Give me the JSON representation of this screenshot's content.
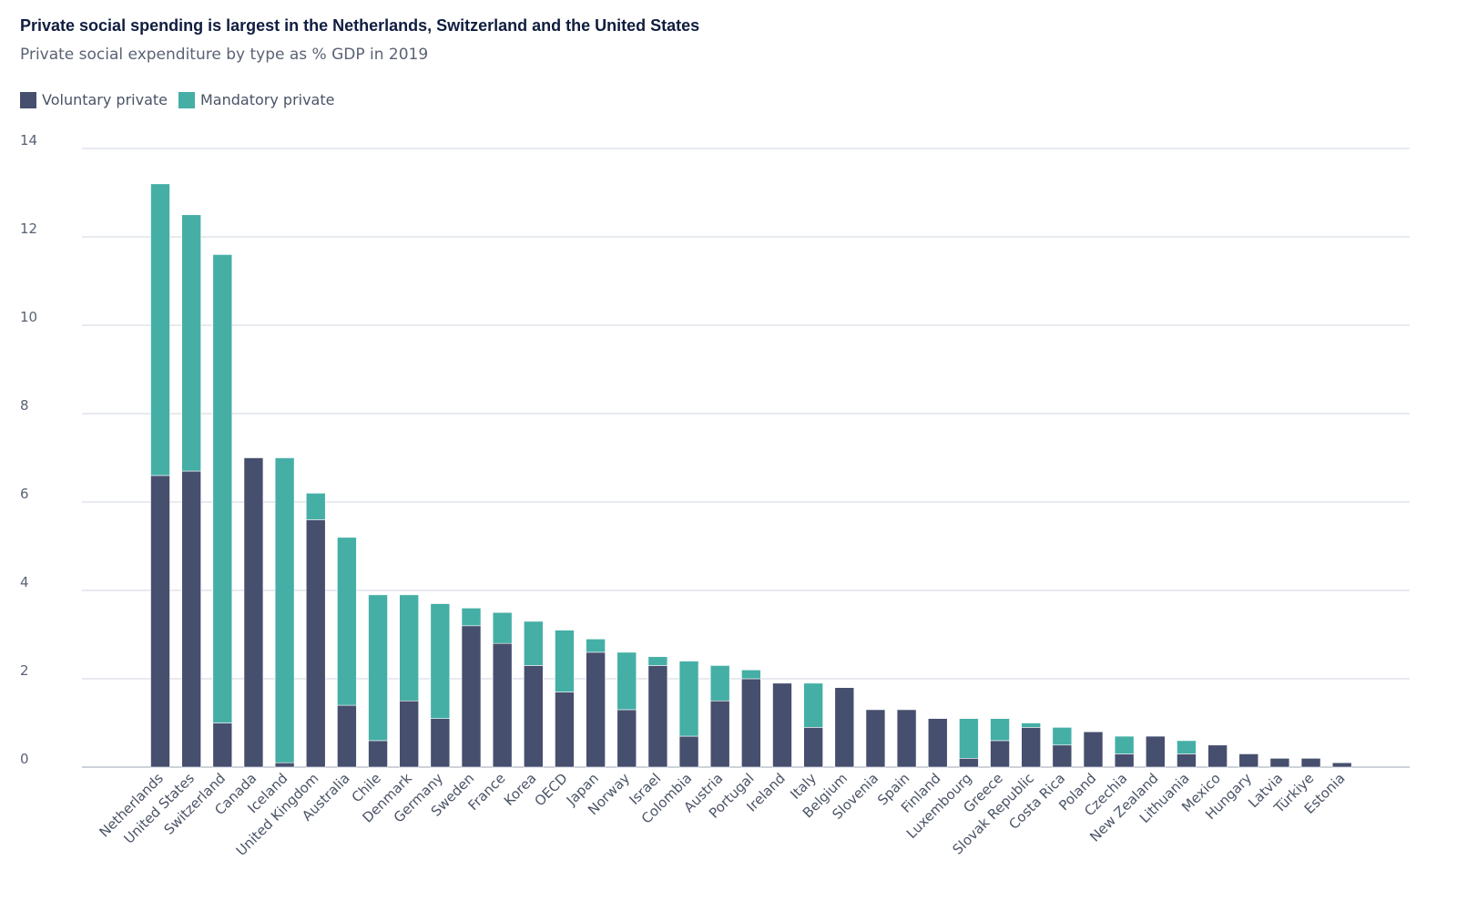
{
  "chart_data": {
    "type": "bar",
    "stacked": true,
    "title": "Private social spending is largest in the Netherlands, Switzerland and the United States",
    "subtitle": "Private social expenditure by type as % GDP in 2019",
    "xlabel": "",
    "ylabel": "",
    "ylim": [
      0,
      14
    ],
    "yticks": [
      0,
      2,
      4,
      6,
      8,
      10,
      12,
      14
    ],
    "grid": true,
    "legend_position": "top-left",
    "categories": [
      "Netherlands",
      "United States",
      "Switzerland",
      "Canada",
      "Iceland",
      "United Kingdom",
      "Australia",
      "Chile",
      "Denmark",
      "Germany",
      "Sweden",
      "France",
      "Korea",
      "OECD",
      "Japan",
      "Norway",
      "Israel",
      "Colombia",
      "Austria",
      "Portugal",
      "Ireland",
      "Italy",
      "Belgium",
      "Slovenia",
      "Spain",
      "Finland",
      "Luxembourg",
      "Greece",
      "Slovak Republic",
      "Costa Rica",
      "Poland",
      "Czechia",
      "New Zealand",
      "Lithuania",
      "Mexico",
      "Hungary",
      "Latvia",
      "Türkiye",
      "Estonia"
    ],
    "series": [
      {
        "name": "Voluntary private",
        "color": "#474f6e",
        "values": [
          6.6,
          6.7,
          1.0,
          7.0,
          0.1,
          5.6,
          1.4,
          0.6,
          1.5,
          1.1,
          3.2,
          2.8,
          2.3,
          1.7,
          2.6,
          1.3,
          2.3,
          0.7,
          1.5,
          2.0,
          1.9,
          0.9,
          1.8,
          1.3,
          1.3,
          1.1,
          0.2,
          0.6,
          0.9,
          0.5,
          0.8,
          0.3,
          0.7,
          0.3,
          0.5,
          0.3,
          0.2,
          0.2,
          0.1
        ]
      },
      {
        "name": "Mandatory private",
        "color": "#45afa6",
        "values": [
          6.6,
          5.8,
          10.6,
          0.0,
          6.9,
          0.6,
          3.8,
          3.3,
          2.4,
          2.6,
          0.4,
          0.7,
          1.0,
          1.4,
          0.3,
          1.3,
          0.2,
          1.7,
          0.8,
          0.2,
          0.0,
          1.0,
          0.0,
          0.0,
          0.0,
          0.0,
          0.9,
          0.5,
          0.1,
          0.4,
          0.0,
          0.4,
          0.0,
          0.3,
          0.0,
          0.0,
          0.0,
          0.0,
          0.0
        ]
      }
    ]
  }
}
